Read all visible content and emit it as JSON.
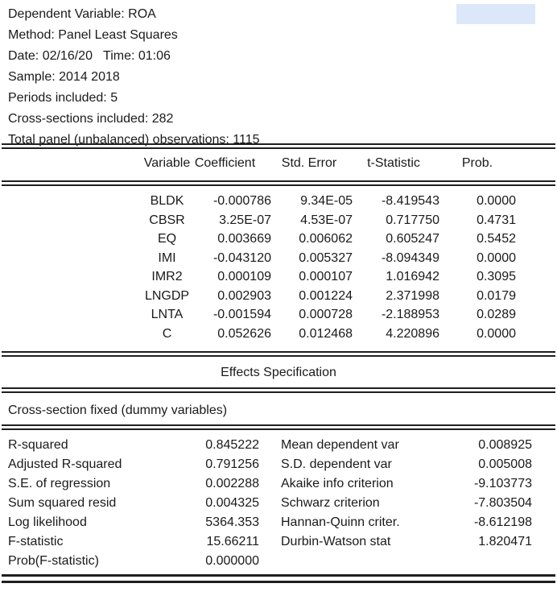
{
  "colors": {
    "selection_highlight": "#dce8f9",
    "text": "#1a1a1a",
    "rule": "#1f1f1f"
  },
  "header": {
    "line1": "Dependent Variable: ROA",
    "line2": "Method: Panel Least Squares",
    "line3": "Date: 02/16/20   Time: 01:06",
    "line4": "Sample: 2014 2018",
    "line5": "Periods included: 5",
    "line6": "Cross-sections included: 282",
    "line7": "Total panel (unbalanced) observations: 1115"
  },
  "coefficients_table": {
    "columns": {
      "variable": "Variable",
      "coefficient": "Coefficient",
      "std_error": "Std. Error",
      "t_statistic": "t-Statistic",
      "prob": "Prob."
    },
    "rows": [
      {
        "variable": "BLDK",
        "coefficient": "-0.000786",
        "std_error": "9.34E-05",
        "t_statistic": "-8.419543",
        "prob": "0.0000"
      },
      {
        "variable": "CBSR",
        "coefficient": "3.25E-07",
        "std_error": "4.53E-07",
        "t_statistic": "0.717750",
        "prob": "0.4731"
      },
      {
        "variable": "EQ",
        "coefficient": "0.003669",
        "std_error": "0.006062",
        "t_statistic": "0.605247",
        "prob": "0.5452"
      },
      {
        "variable": "IMI",
        "coefficient": "-0.043120",
        "std_error": "0.005327",
        "t_statistic": "-8.094349",
        "prob": "0.0000"
      },
      {
        "variable": "IMR2",
        "coefficient": "0.000109",
        "std_error": "0.000107",
        "t_statistic": "1.016942",
        "prob": "0.3095"
      },
      {
        "variable": "LNGDP",
        "coefficient": "0.002903",
        "std_error": "0.001224",
        "t_statistic": "2.371998",
        "prob": "0.0179"
      },
      {
        "variable": "LNTA",
        "coefficient": "-0.001594",
        "std_error": "0.000728",
        "t_statistic": "-2.188953",
        "prob": "0.0289"
      },
      {
        "variable": "C",
        "coefficient": "0.052626",
        "std_error": "0.012468",
        "t_statistic": "4.220896",
        "prob": "0.0000"
      }
    ]
  },
  "effects": {
    "title": "Effects Specification",
    "detail": "Cross-section fixed (dummy variables)"
  },
  "summary_stats": {
    "rows": [
      {
        "label_left": "R-squared",
        "value_left": "0.845222",
        "label_right": "Mean dependent var",
        "value_right": "0.008925"
      },
      {
        "label_left": "Adjusted R-squared",
        "value_left": "0.791256",
        "label_right": "S.D. dependent var",
        "value_right": "0.005008"
      },
      {
        "label_left": "S.E. of regression",
        "value_left": "0.002288",
        "label_right": "Akaike info criterion",
        "value_right": "-9.103773"
      },
      {
        "label_left": "Sum squared resid",
        "value_left": "0.004325",
        "label_right": "Schwarz criterion",
        "value_right": "-7.803504"
      },
      {
        "label_left": "Log likelihood",
        "value_left": "5364.353",
        "label_right": "Hannan-Quinn criter.",
        "value_right": "-8.612198"
      },
      {
        "label_left": "F-statistic",
        "value_left": "15.66211",
        "label_right": "Durbin-Watson stat",
        "value_right": "1.820471"
      },
      {
        "label_left": "Prob(F-statistic)",
        "value_left": "0.000000",
        "label_right": "",
        "value_right": ""
      }
    ]
  }
}
